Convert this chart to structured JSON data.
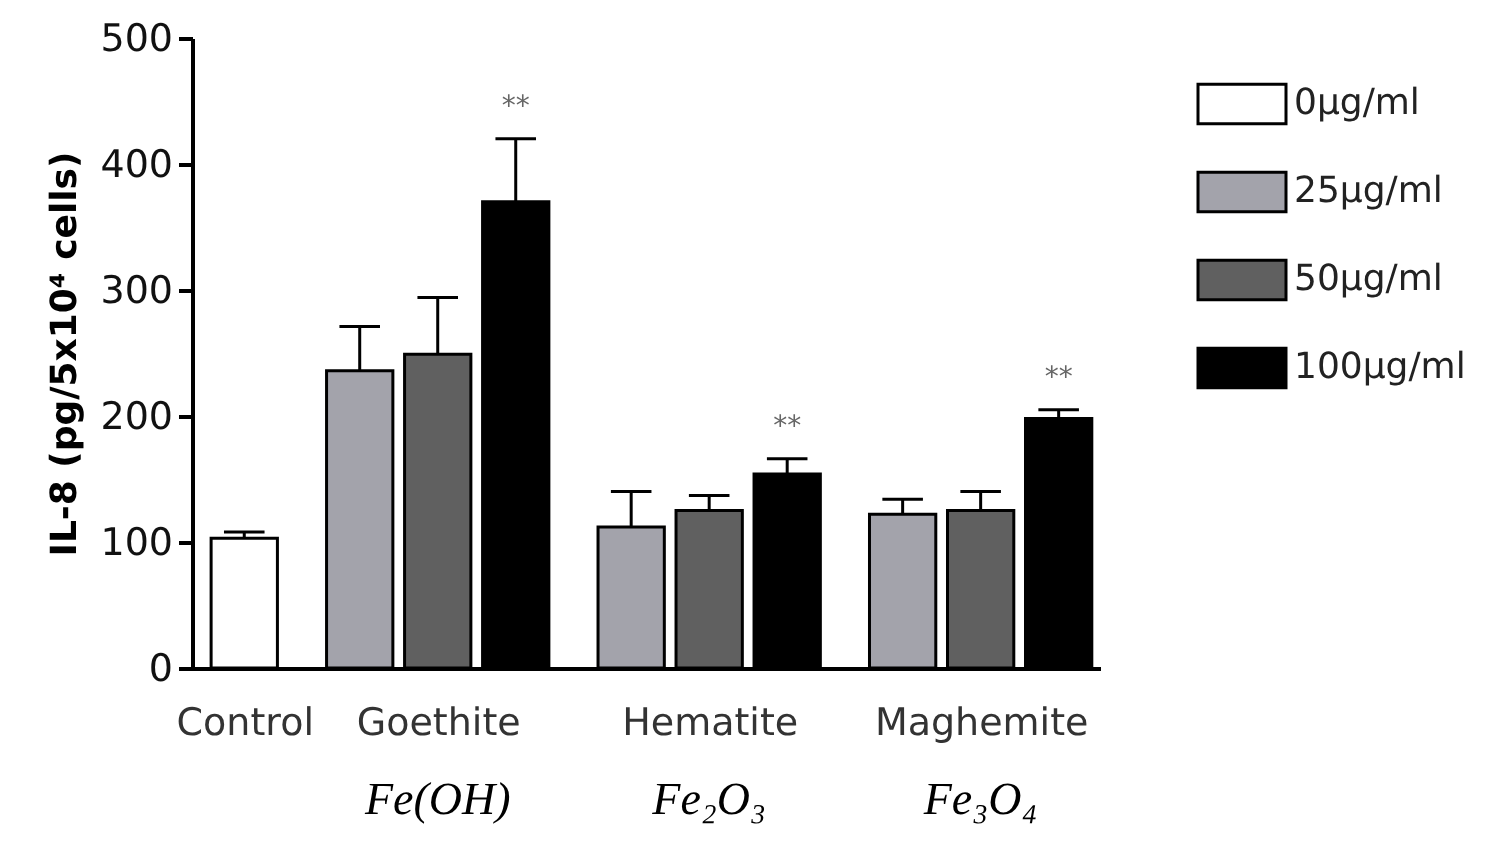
{
  "chart_data": {
    "type": "bar",
    "ylabel": "IL-8 (pg/5x10⁴ cells)",
    "categories": [
      "Control",
      "Goethite",
      "Hematite",
      "Maghemite"
    ],
    "series": [
      {
        "name": "0µg/ml",
        "color": "#ffffff",
        "values": [
          103,
          null,
          null,
          null
        ],
        "errors": [
          5,
          null,
          null,
          null
        ]
      },
      {
        "name": "25µg/ml",
        "color": "#a3a3ab",
        "values": [
          null,
          236,
          112,
          122
        ],
        "errors": [
          null,
          35,
          28,
          12
        ]
      },
      {
        "name": "50µg/ml",
        "color": "#606060",
        "values": [
          null,
          249,
          125,
          125
        ],
        "errors": [
          null,
          45,
          12,
          15
        ]
      },
      {
        "name": "100µg/ml",
        "color": "#000000",
        "values": [
          null,
          370,
          154,
          198
        ],
        "errors": [
          null,
          50,
          12,
          7
        ],
        "value_labels": [
          null,
          "**",
          "**",
          "**"
        ]
      }
    ],
    "ylim": [
      0,
      500
    ],
    "yticks": [
      0,
      100,
      200,
      300,
      400,
      500
    ],
    "grid": false,
    "legend": "top right",
    "annotations": [
      "Fe(OH)",
      "Fe₂O₃",
      "Fe₃O₄"
    ]
  }
}
